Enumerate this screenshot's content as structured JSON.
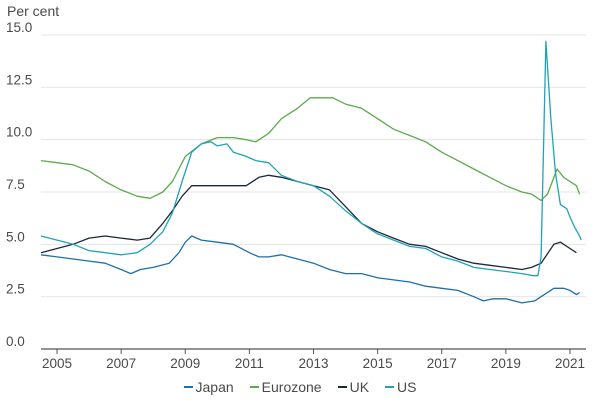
{
  "chart_data": {
    "type": "line",
    "title": "",
    "ylabel": "Per cent",
    "xlabel": "",
    "xlim": [
      2004.5,
      2021.5
    ],
    "ylim": [
      0,
      15
    ],
    "yticks": [
      0.0,
      2.5,
      5.0,
      7.5,
      10.0,
      12.5,
      15.0
    ],
    "ytick_labels": [
      "0.0",
      "2.5",
      "5.0",
      "7.5",
      "10.0",
      "12.5",
      "15.0"
    ],
    "xticks": [
      2005,
      2007,
      2009,
      2011,
      2013,
      2015,
      2017,
      2019,
      2021
    ],
    "xtick_labels": [
      "2005",
      "2007",
      "2009",
      "2011",
      "2013",
      "2015",
      "2017",
      "2019",
      "2021"
    ],
    "grid": "horizontal",
    "legend_position": "bottom",
    "series": [
      {
        "name": "Japan",
        "color": "#1f6fa8",
        "points": [
          [
            2004.5,
            4.5
          ],
          [
            2005.0,
            4.4
          ],
          [
            2005.5,
            4.3
          ],
          [
            2006.0,
            4.2
          ],
          [
            2006.5,
            4.1
          ],
          [
            2007.0,
            3.8
          ],
          [
            2007.3,
            3.6
          ],
          [
            2007.6,
            3.8
          ],
          [
            2008.0,
            3.9
          ],
          [
            2008.5,
            4.1
          ],
          [
            2008.8,
            4.6
          ],
          [
            2009.0,
            5.1
          ],
          [
            2009.2,
            5.4
          ],
          [
            2009.5,
            5.2
          ],
          [
            2010.0,
            5.1
          ],
          [
            2010.5,
            5.0
          ],
          [
            2011.0,
            4.6
          ],
          [
            2011.3,
            4.4
          ],
          [
            2011.6,
            4.4
          ],
          [
            2012.0,
            4.5
          ],
          [
            2012.5,
            4.3
          ],
          [
            2013.0,
            4.1
          ],
          [
            2013.5,
            3.8
          ],
          [
            2014.0,
            3.6
          ],
          [
            2014.5,
            3.6
          ],
          [
            2015.0,
            3.4
          ],
          [
            2015.5,
            3.3
          ],
          [
            2016.0,
            3.2
          ],
          [
            2016.5,
            3.0
          ],
          [
            2017.0,
            2.9
          ],
          [
            2017.5,
            2.8
          ],
          [
            2018.0,
            2.5
          ],
          [
            2018.3,
            2.3
          ],
          [
            2018.6,
            2.4
          ],
          [
            2019.0,
            2.4
          ],
          [
            2019.5,
            2.2
          ],
          [
            2019.9,
            2.3
          ],
          [
            2020.2,
            2.6
          ],
          [
            2020.5,
            2.9
          ],
          [
            2020.8,
            2.9
          ],
          [
            2021.0,
            2.8
          ],
          [
            2021.2,
            2.6
          ],
          [
            2021.3,
            2.7
          ]
        ]
      },
      {
        "name": "Eurozone",
        "color": "#5bab4a",
        "points": [
          [
            2004.5,
            9.0
          ],
          [
            2005.0,
            8.9
          ],
          [
            2005.5,
            8.8
          ],
          [
            2006.0,
            8.5
          ],
          [
            2006.5,
            8.0
          ],
          [
            2007.0,
            7.6
          ],
          [
            2007.5,
            7.3
          ],
          [
            2007.9,
            7.2
          ],
          [
            2008.3,
            7.5
          ],
          [
            2008.6,
            8.0
          ],
          [
            2009.0,
            9.2
          ],
          [
            2009.5,
            9.8
          ],
          [
            2010.0,
            10.1
          ],
          [
            2010.5,
            10.1
          ],
          [
            2010.9,
            10.0
          ],
          [
            2011.2,
            9.9
          ],
          [
            2011.6,
            10.3
          ],
          [
            2012.0,
            11.0
          ],
          [
            2012.5,
            11.5
          ],
          [
            2012.9,
            12.0
          ],
          [
            2013.3,
            12.0
          ],
          [
            2013.6,
            12.0
          ],
          [
            2014.0,
            11.7
          ],
          [
            2014.5,
            11.5
          ],
          [
            2015.0,
            11.0
          ],
          [
            2015.5,
            10.5
          ],
          [
            2016.0,
            10.2
          ],
          [
            2016.5,
            9.9
          ],
          [
            2017.0,
            9.4
          ],
          [
            2017.5,
            9.0
          ],
          [
            2018.0,
            8.6
          ],
          [
            2018.5,
            8.2
          ],
          [
            2019.0,
            7.8
          ],
          [
            2019.5,
            7.5
          ],
          [
            2019.8,
            7.4
          ],
          [
            2020.1,
            7.1
          ],
          [
            2020.3,
            7.4
          ],
          [
            2020.6,
            8.6
          ],
          [
            2020.8,
            8.2
          ],
          [
            2021.0,
            8.0
          ],
          [
            2021.2,
            7.8
          ],
          [
            2021.3,
            7.4
          ]
        ]
      },
      {
        "name": "UK",
        "color": "#1a2a3a",
        "points": [
          [
            2004.5,
            4.6
          ],
          [
            2005.0,
            4.8
          ],
          [
            2005.5,
            5.0
          ],
          [
            2006.0,
            5.3
          ],
          [
            2006.5,
            5.4
          ],
          [
            2007.0,
            5.3
          ],
          [
            2007.5,
            5.2
          ],
          [
            2007.9,
            5.3
          ],
          [
            2008.3,
            6.0
          ],
          [
            2008.6,
            6.6
          ],
          [
            2008.9,
            7.3
          ],
          [
            2009.2,
            7.8
          ],
          [
            2009.5,
            7.8
          ],
          [
            2010.0,
            7.8
          ],
          [
            2010.5,
            7.8
          ],
          [
            2010.9,
            7.8
          ],
          [
            2011.3,
            8.2
          ],
          [
            2011.6,
            8.3
          ],
          [
            2012.0,
            8.2
          ],
          [
            2012.5,
            8.0
          ],
          [
            2013.0,
            7.8
          ],
          [
            2013.5,
            7.6
          ],
          [
            2014.0,
            6.8
          ],
          [
            2014.5,
            6.0
          ],
          [
            2015.0,
            5.6
          ],
          [
            2015.5,
            5.3
          ],
          [
            2016.0,
            5.0
          ],
          [
            2016.5,
            4.9
          ],
          [
            2017.0,
            4.6
          ],
          [
            2017.5,
            4.3
          ],
          [
            2018.0,
            4.1
          ],
          [
            2018.5,
            4.0
          ],
          [
            2019.0,
            3.9
          ],
          [
            2019.5,
            3.8
          ],
          [
            2019.8,
            3.9
          ],
          [
            2020.1,
            4.1
          ],
          [
            2020.5,
            5.0
          ],
          [
            2020.7,
            5.1
          ],
          [
            2021.0,
            4.8
          ],
          [
            2021.2,
            4.6
          ]
        ]
      },
      {
        "name": "US",
        "color": "#20a3b8",
        "points": [
          [
            2004.5,
            5.4
          ],
          [
            2005.0,
            5.2
          ],
          [
            2005.5,
            5.0
          ],
          [
            2006.0,
            4.7
          ],
          [
            2006.5,
            4.6
          ],
          [
            2007.0,
            4.5
          ],
          [
            2007.5,
            4.6
          ],
          [
            2007.9,
            5.0
          ],
          [
            2008.3,
            5.6
          ],
          [
            2008.6,
            6.5
          ],
          [
            2008.9,
            8.0
          ],
          [
            2009.2,
            9.4
          ],
          [
            2009.5,
            9.8
          ],
          [
            2009.8,
            9.9
          ],
          [
            2010.0,
            9.7
          ],
          [
            2010.3,
            9.8
          ],
          [
            2010.5,
            9.4
          ],
          [
            2010.9,
            9.2
          ],
          [
            2011.2,
            9.0
          ],
          [
            2011.6,
            8.9
          ],
          [
            2012.0,
            8.3
          ],
          [
            2012.5,
            8.0
          ],
          [
            2013.0,
            7.8
          ],
          [
            2013.5,
            7.3
          ],
          [
            2014.0,
            6.6
          ],
          [
            2014.5,
            6.0
          ],
          [
            2015.0,
            5.5
          ],
          [
            2015.5,
            5.2
          ],
          [
            2016.0,
            4.9
          ],
          [
            2016.5,
            4.8
          ],
          [
            2017.0,
            4.4
          ],
          [
            2017.5,
            4.2
          ],
          [
            2018.0,
            3.9
          ],
          [
            2018.5,
            3.8
          ],
          [
            2019.0,
            3.7
          ],
          [
            2019.5,
            3.6
          ],
          [
            2019.85,
            3.5
          ],
          [
            2020.0,
            3.5
          ],
          [
            2020.1,
            4.4
          ],
          [
            2020.25,
            14.7
          ],
          [
            2020.4,
            11.1
          ],
          [
            2020.55,
            8.4
          ],
          [
            2020.7,
            6.9
          ],
          [
            2020.9,
            6.7
          ],
          [
            2021.0,
            6.3
          ],
          [
            2021.15,
            5.8
          ],
          [
            2021.3,
            5.4
          ],
          [
            2021.35,
            5.2
          ]
        ]
      }
    ]
  }
}
